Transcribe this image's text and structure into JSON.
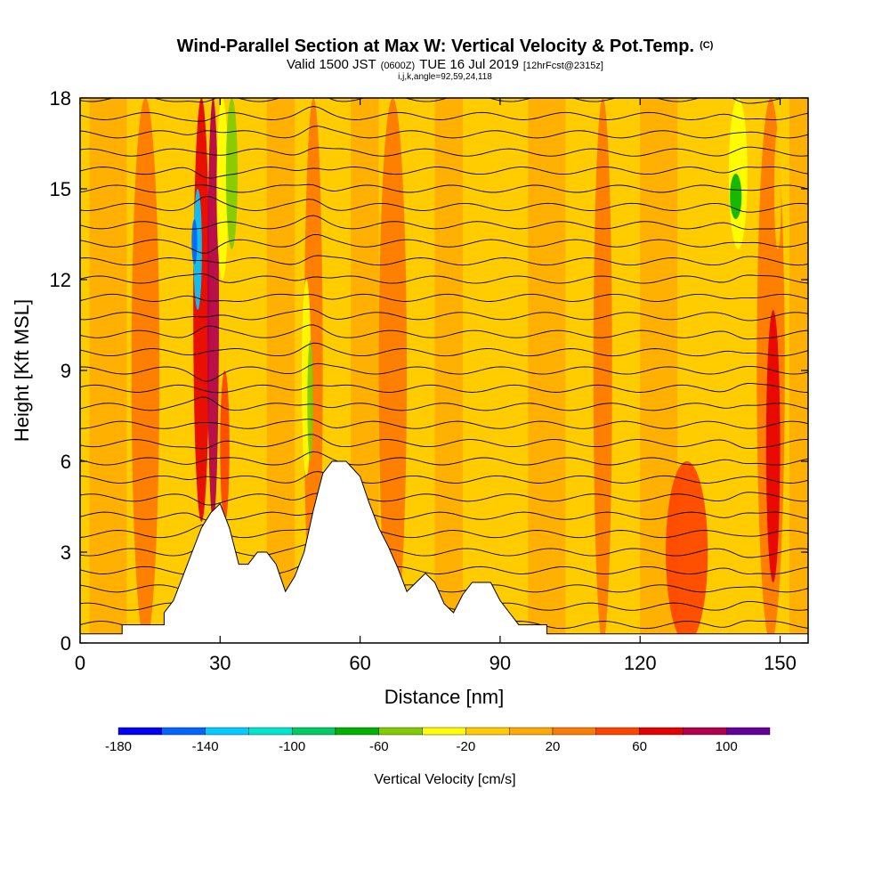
{
  "chart_data": {
    "type": "heatmap",
    "title": "Wind-Parallel Section at Max W: Vertical Velocity & Pot.Temp.",
    "title_mark": "(C)",
    "subtitle_main": "Valid 1500 JST",
    "subtitle_zulu": "(0600Z)",
    "subtitle_date": "TUE 16 Jul 2019",
    "subtitle_fcst": "[12hrFcst@2315z]",
    "subtitle2": "i,j,k,angle=92,59,24,118",
    "xlabel": "Distance [nm]",
    "ylabel": "Height [Kft MSL]",
    "xlim": [
      0,
      156
    ],
    "ylim": [
      0,
      18
    ],
    "xticks": [
      "0",
      "30",
      "60",
      "90",
      "120",
      "150"
    ],
    "yticks": [
      "0",
      "3",
      "6",
      "9",
      "12",
      "15",
      "18"
    ],
    "colorbar": {
      "label": "Vertical Velocity [cm/s]",
      "ticks": [
        "-180",
        "-140",
        "-100",
        "-60",
        "-20",
        "20",
        "60",
        "100"
      ],
      "levels": [
        -180,
        -160,
        -140,
        -120,
        -100,
        -80,
        -60,
        -40,
        -20,
        0,
        20,
        40,
        60,
        80,
        100,
        120
      ],
      "colors": [
        "#0000ff",
        "#0066ff",
        "#00ccff",
        "#00e6cc",
        "#00cc66",
        "#00b300",
        "#80cc00",
        "#ffff00",
        "#ffcc00",
        "#ffaa00",
        "#ff7a00",
        "#ff4400",
        "#e60000",
        "#b3004d",
        "#660099"
      ]
    },
    "terrain": [
      {
        "x": 0,
        "y": 0.3
      },
      {
        "x": 9,
        "y": 0.3
      },
      {
        "x": 9,
        "y": 0.6
      },
      {
        "x": 18,
        "y": 0.6
      },
      {
        "x": 18,
        "y": 1.0
      },
      {
        "x": 20,
        "y": 1.4
      },
      {
        "x": 22,
        "y": 2.2
      },
      {
        "x": 24,
        "y": 3.0
      },
      {
        "x": 26,
        "y": 3.8
      },
      {
        "x": 28,
        "y": 4.3
      },
      {
        "x": 30,
        "y": 4.6
      },
      {
        "x": 32,
        "y": 3.8
      },
      {
        "x": 34,
        "y": 2.6
      },
      {
        "x": 36,
        "y": 2.6
      },
      {
        "x": 38,
        "y": 3.0
      },
      {
        "x": 40,
        "y": 3.0
      },
      {
        "x": 42,
        "y": 2.6
      },
      {
        "x": 44,
        "y": 1.7
      },
      {
        "x": 46,
        "y": 2.2
      },
      {
        "x": 48,
        "y": 3.0
      },
      {
        "x": 50,
        "y": 4.4
      },
      {
        "x": 52,
        "y": 5.6
      },
      {
        "x": 54,
        "y": 6.0
      },
      {
        "x": 57,
        "y": 6.0
      },
      {
        "x": 60,
        "y": 5.5
      },
      {
        "x": 62,
        "y": 4.6
      },
      {
        "x": 64,
        "y": 3.8
      },
      {
        "x": 66,
        "y": 3.2
      },
      {
        "x": 68,
        "y": 2.5
      },
      {
        "x": 70,
        "y": 1.7
      },
      {
        "x": 72,
        "y": 2.0
      },
      {
        "x": 74,
        "y": 2.3
      },
      {
        "x": 76,
        "y": 2.0
      },
      {
        "x": 78,
        "y": 1.3
      },
      {
        "x": 80,
        "y": 1.0
      },
      {
        "x": 82,
        "y": 1.6
      },
      {
        "x": 84,
        "y": 2.0
      },
      {
        "x": 88,
        "y": 2.0
      },
      {
        "x": 90,
        "y": 1.4
      },
      {
        "x": 92,
        "y": 1.0
      },
      {
        "x": 94,
        "y": 0.6
      },
      {
        "x": 100,
        "y": 0.6
      },
      {
        "x": 100,
        "y": 0.3
      },
      {
        "x": 156,
        "y": 0.3
      }
    ],
    "updraft_bands": [
      {
        "x": 14,
        "width": 6,
        "ymin": 0,
        "ymax": 18,
        "w": 20
      },
      {
        "x": 26,
        "width": 3.5,
        "ymin": 4,
        "ymax": 18,
        "w": 60
      },
      {
        "x": 28.5,
        "width": 2.5,
        "ymin": 4,
        "ymax": 18,
        "w": 80
      },
      {
        "x": 31,
        "width": 2,
        "ymin": 4,
        "ymax": 9,
        "w": 40
      },
      {
        "x": 50,
        "width": 4,
        "ymin": 0,
        "ymax": 18,
        "w": 20
      },
      {
        "x": 67,
        "width": 6,
        "ymin": 0,
        "ymax": 18,
        "w": 20
      },
      {
        "x": 112,
        "width": 4,
        "ymin": 0,
        "ymax": 18,
        "w": 20
      },
      {
        "x": 130,
        "width": 9,
        "ymin": 0,
        "ymax": 6,
        "w": 40
      },
      {
        "x": 148,
        "width": 6,
        "ymin": 0,
        "ymax": 18,
        "w": 20
      },
      {
        "x": 148.5,
        "width": 3,
        "ymin": 2,
        "ymax": 11,
        "w": 60
      }
    ],
    "downdraft_bands": [
      {
        "x": 25.2,
        "width": 1.8,
        "ymin": 11,
        "ymax": 15,
        "w": -140
      },
      {
        "x": 24.5,
        "width": 1.2,
        "ymin": 12.5,
        "ymax": 14,
        "w": -160
      },
      {
        "x": 30.5,
        "width": 2.5,
        "ymin": 12,
        "ymax": 18,
        "w": -40
      },
      {
        "x": 32.5,
        "width": 2.5,
        "ymin": 13,
        "ymax": 18,
        "w": -60
      },
      {
        "x": 48.5,
        "width": 2,
        "ymin": 5.5,
        "ymax": 12,
        "w": -40
      },
      {
        "x": 49.3,
        "width": 1.2,
        "ymin": 6,
        "ymax": 10,
        "w": -60
      },
      {
        "x": 141,
        "width": 4,
        "ymin": 13,
        "ymax": 18,
        "w": -40
      },
      {
        "x": 140.5,
        "width": 2.5,
        "ymin": 14,
        "ymax": 15.5,
        "w": -80
      },
      {
        "x": 149.5,
        "width": 1.5,
        "ymin": 13,
        "ymax": 17,
        "w": -20
      }
    ],
    "isentropes": {
      "count": 30,
      "base": 0.6,
      "spacing": 0.6
    }
  }
}
